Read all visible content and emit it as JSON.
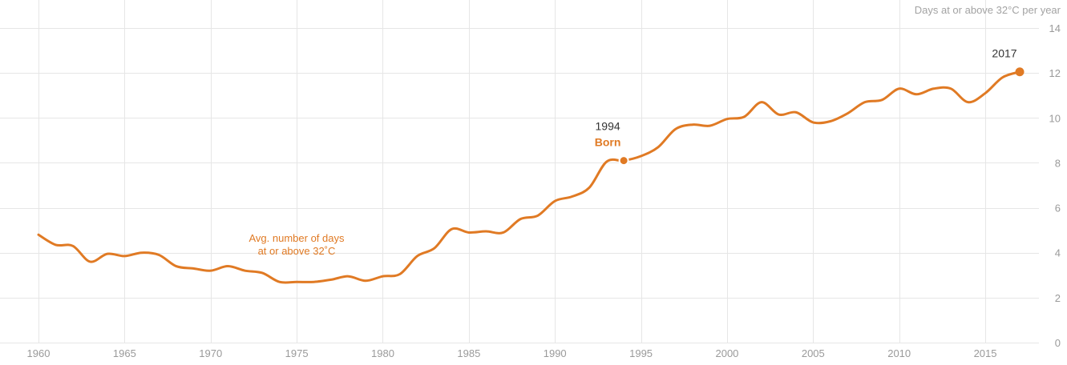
{
  "chart_data": {
    "type": "line",
    "title": "",
    "xlabel": "",
    "ylabel": "Days at or above 32°C per year",
    "xlim": [
      1960,
      2017
    ],
    "ylim": [
      0,
      14
    ],
    "grid": true,
    "x_ticks": [
      1960,
      1965,
      1970,
      1975,
      1980,
      1985,
      1990,
      1995,
      2000,
      2005,
      2010,
      2015
    ],
    "y_ticks": [
      0,
      2,
      4,
      6,
      8,
      10,
      12,
      14
    ],
    "series": [
      {
        "color": "#e07a24",
        "x": [
          1960,
          1961,
          1962,
          1963,
          1964,
          1965,
          1966,
          1967,
          1968,
          1969,
          1970,
          1971,
          1972,
          1973,
          1974,
          1975,
          1976,
          1977,
          1978,
          1979,
          1980,
          1981,
          1982,
          1983,
          1984,
          1985,
          1986,
          1987,
          1988,
          1989,
          1990,
          1991,
          1992,
          1993,
          1994,
          1995,
          1996,
          1997,
          1998,
          1999,
          2000,
          2001,
          2002,
          2003,
          2004,
          2005,
          2006,
          2007,
          2008,
          2009,
          2010,
          2011,
          2012,
          2013,
          2014,
          2015,
          2016,
          2017
        ],
        "values": [
          4.8,
          4.35,
          4.3,
          3.6,
          3.95,
          3.85,
          4.0,
          3.9,
          3.4,
          3.3,
          3.2,
          3.4,
          3.2,
          3.1,
          2.7,
          2.7,
          2.7,
          2.8,
          2.95,
          2.75,
          2.95,
          3.05,
          3.85,
          4.2,
          5.05,
          4.9,
          4.95,
          4.9,
          5.5,
          5.65,
          6.3,
          6.5,
          6.9,
          8.05,
          8.1,
          8.3,
          8.7,
          9.5,
          9.7,
          9.65,
          9.95,
          10.05,
          10.7,
          10.15,
          10.25,
          9.8,
          9.85,
          10.2,
          10.7,
          10.8,
          11.3,
          11.05,
          11.3,
          11.3,
          10.7,
          11.1,
          11.8,
          12.05
        ]
      }
    ],
    "annotations": {
      "born_year": "1994",
      "born_label": "Born",
      "born_x": 1994,
      "born_y": 8.1,
      "end_year": "2017",
      "end_x": 2017,
      "end_y": 12.05,
      "series_label_line1": "Avg. number of days",
      "series_label_line2": "at or above 32˚C"
    }
  }
}
